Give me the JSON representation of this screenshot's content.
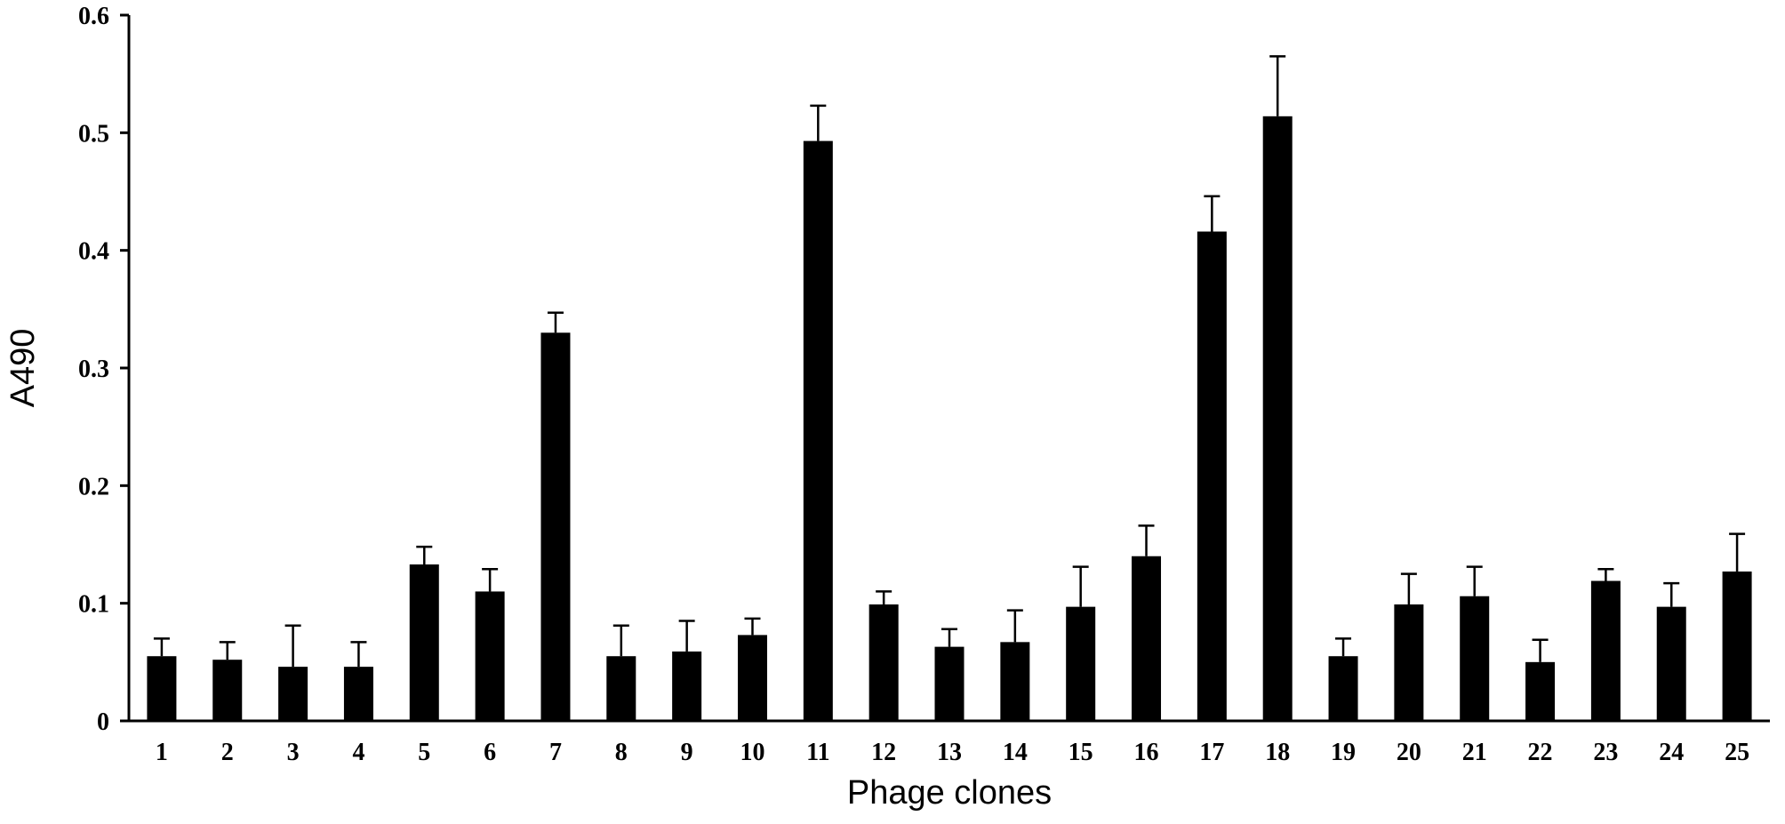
{
  "chart_data": {
    "type": "bar",
    "x_label": "Phage clones",
    "y_label": "A490",
    "categories": [
      "1",
      "2",
      "3",
      "4",
      "5",
      "6",
      "7",
      "8",
      "9",
      "10",
      "11",
      "12",
      "13",
      "14",
      "15",
      "16",
      "17",
      "18",
      "19",
      "20",
      "21",
      "22",
      "23",
      "24",
      "25"
    ],
    "values": [
      0.055,
      0.052,
      0.046,
      0.046,
      0.133,
      0.11,
      0.33,
      0.055,
      0.059,
      0.073,
      0.493,
      0.099,
      0.063,
      0.067,
      0.097,
      0.14,
      0.416,
      0.514,
      0.055,
      0.099,
      0.106,
      0.05,
      0.119,
      0.097,
      0.127
    ],
    "errors": [
      0.015,
      0.015,
      0.035,
      0.021,
      0.015,
      0.019,
      0.017,
      0.026,
      0.026,
      0.014,
      0.03,
      0.011,
      0.015,
      0.027,
      0.034,
      0.026,
      0.03,
      0.051,
      0.015,
      0.026,
      0.025,
      0.019,
      0.01,
      0.02,
      0.032
    ],
    "color": "#000000",
    "ylim": [
      0,
      0.6
    ],
    "yticks": [
      0,
      0.1,
      0.2,
      0.3,
      0.4,
      0.5,
      0.6
    ],
    "grid": false
  }
}
